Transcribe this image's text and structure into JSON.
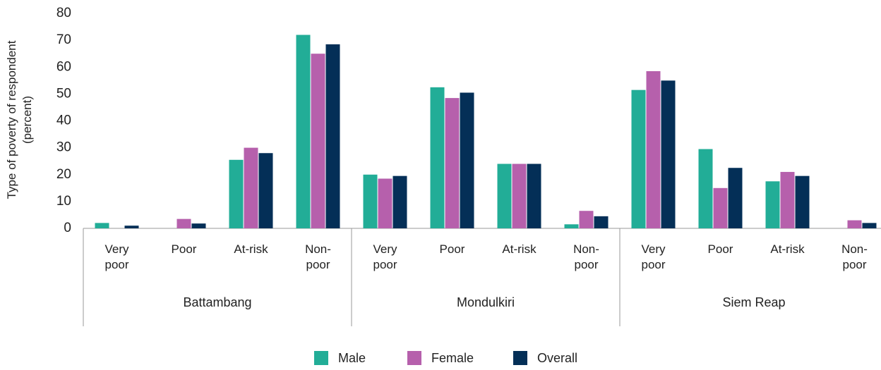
{
  "chart_data": {
    "type": "bar",
    "ylabel": "Type of poverty of respondent (percent)",
    "groups": [
      "Battambang",
      "Mondulkiri",
      "Siem Reap"
    ],
    "categories": [
      "Very poor",
      "Poor",
      "At-risk",
      "Non-poor",
      "Very poor",
      "Poor",
      "At-risk",
      "Non-poor",
      "Very poor",
      "Poor",
      "At-risk",
      "Non-poor"
    ],
    "series": [
      {
        "name": "Male",
        "color": "#22ad97",
        "values": [
          2,
          0,
          25.5,
          72,
          20,
          52.5,
          24,
          1.5,
          51.5,
          29.5,
          17.5,
          0
        ]
      },
      {
        "name": "Female",
        "color": "#b660ac",
        "values": [
          0,
          3.5,
          30,
          65,
          18.5,
          48.5,
          24,
          6.5,
          58.5,
          15,
          21,
          3
        ]
      },
      {
        "name": "Overall",
        "color": "#042f57",
        "values": [
          1,
          1.8,
          28,
          68.5,
          19.5,
          50.5,
          24,
          4.5,
          55,
          22.5,
          19.5,
          2
        ]
      }
    ],
    "ylim": [
      0,
      80
    ],
    "yticks": [
      0,
      10,
      20,
      30,
      40,
      50,
      60,
      70,
      80
    ],
    "grid": false
  }
}
